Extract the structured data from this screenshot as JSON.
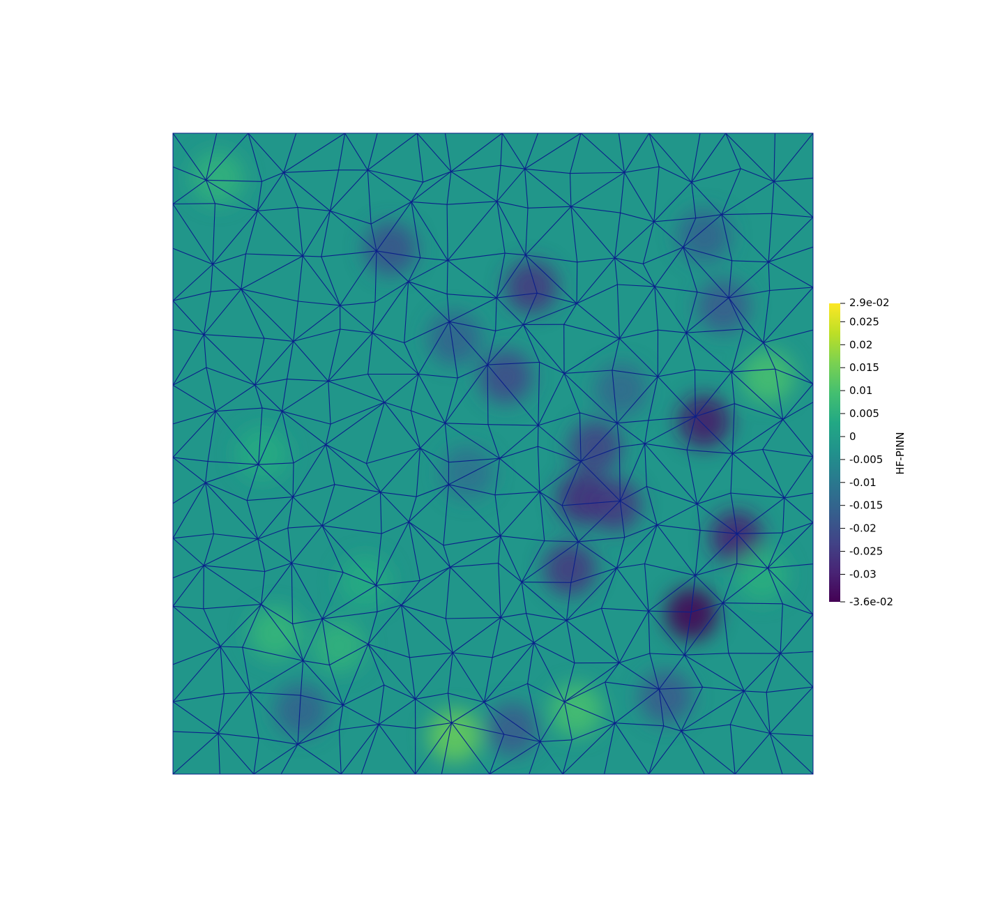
{
  "chart_data": {
    "type": "heatmap",
    "title": "",
    "colorbar": {
      "title": "HF-PINN",
      "colormap": "viridis",
      "range": [
        -0.036,
        0.029
      ],
      "max_label": "2.9e-02",
      "min_label": "-3.6e-02",
      "ticks": [
        {
          "value": 0.025,
          "label": "0.025"
        },
        {
          "value": 0.02,
          "label": "0.02"
        },
        {
          "value": 0.015,
          "label": "0.015"
        },
        {
          "value": 0.01,
          "label": "0.01"
        },
        {
          "value": 0.005,
          "label": "0.005"
        },
        {
          "value": 0,
          "label": "0"
        },
        {
          "value": -0.005,
          "label": "-0.005"
        },
        {
          "value": -0.01,
          "label": "-0.01"
        },
        {
          "value": -0.015,
          "label": "-0.015"
        },
        {
          "value": -0.02,
          "label": "-0.02"
        },
        {
          "value": -0.025,
          "label": "-0.025"
        },
        {
          "value": -0.03,
          "label": "-0.03"
        }
      ],
      "placement": "right"
    },
    "domain": {
      "x": [
        0,
        1
      ],
      "y": [
        0,
        1
      ]
    },
    "background_value": -0.002,
    "mesh": {
      "type": "unstructured triangular",
      "edge_color": "#0b1f8a"
    },
    "field_points": [
      {
        "x": 0.56,
        "y": 0.76,
        "value": -0.026
      },
      {
        "x": 0.66,
        "y": 0.51,
        "value": -0.024
      },
      {
        "x": 0.64,
        "y": 0.43,
        "value": -0.028
      },
      {
        "x": 0.69,
        "y": 0.42,
        "value": -0.026
      },
      {
        "x": 0.62,
        "y": 0.32,
        "value": -0.026
      },
      {
        "x": 0.52,
        "y": 0.62,
        "value": -0.022
      },
      {
        "x": 0.34,
        "y": 0.82,
        "value": -0.02
      },
      {
        "x": 0.44,
        "y": 0.68,
        "value": -0.016
      },
      {
        "x": 0.83,
        "y": 0.55,
        "value": -0.032
      },
      {
        "x": 0.88,
        "y": 0.37,
        "value": -0.03
      },
      {
        "x": 0.81,
        "y": 0.25,
        "value": -0.036
      },
      {
        "x": 0.86,
        "y": 0.73,
        "value": -0.018
      },
      {
        "x": 0.83,
        "y": 0.84,
        "value": -0.016
      },
      {
        "x": 0.77,
        "y": 0.12,
        "value": -0.018
      },
      {
        "x": 0.53,
        "y": 0.07,
        "value": -0.018
      },
      {
        "x": 0.2,
        "y": 0.1,
        "value": -0.016
      },
      {
        "x": 0.46,
        "y": 0.47,
        "value": -0.012
      },
      {
        "x": 0.7,
        "y": 0.6,
        "value": -0.014
      },
      {
        "x": 0.44,
        "y": 0.06,
        "value": 0.014
      },
      {
        "x": 0.63,
        "y": 0.1,
        "value": 0.01
      },
      {
        "x": 0.93,
        "y": 0.62,
        "value": 0.01
      },
      {
        "x": 0.16,
        "y": 0.22,
        "value": 0.007
      },
      {
        "x": 0.07,
        "y": 0.93,
        "value": 0.006
      },
      {
        "x": 0.92,
        "y": 0.31,
        "value": 0.005
      },
      {
        "x": 0.14,
        "y": 0.5,
        "value": 0.004
      },
      {
        "x": 0.26,
        "y": 0.2,
        "value": 0.006
      },
      {
        "x": 0.3,
        "y": 0.3,
        "value": 0.004
      }
    ]
  }
}
